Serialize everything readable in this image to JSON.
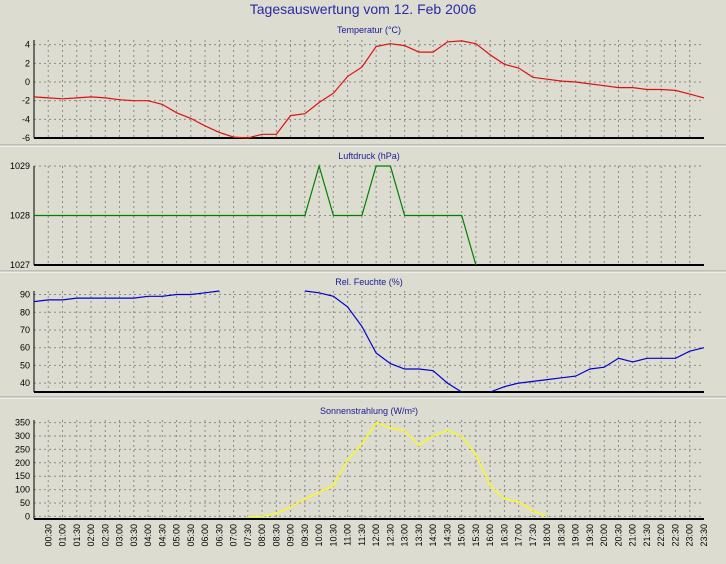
{
  "title": "Tagesauswertung vom 12. Feb 2006",
  "colors": {
    "background": "#dcdcd0",
    "title": "#2a2aa8",
    "grid": "#8c8c8c",
    "temperature": "#e01010",
    "pressure": "#008000",
    "humidity": "#0000d0",
    "radiation": "#ffff00"
  },
  "chart_data": [
    {
      "type": "line",
      "title": "Temperatur (°C)",
      "ylim": [
        -6,
        4.5
      ],
      "yticks": [
        4,
        2,
        0,
        -2,
        -4,
        -6
      ],
      "x": [
        0,
        0.5,
        1,
        1.5,
        2,
        2.5,
        3,
        3.5,
        4,
        4.5,
        5,
        5.5,
        6,
        6.5,
        7,
        7.5,
        8,
        8.5,
        9,
        9.5,
        10,
        10.5,
        11,
        11.5,
        12,
        12.5,
        13,
        13.5,
        14,
        14.5,
        15,
        15.5,
        16,
        16.5,
        17,
        17.5,
        18,
        18.5,
        19,
        19.5,
        20,
        20.5,
        21,
        21.5,
        22,
        22.5,
        23,
        23.5
      ],
      "series": [
        {
          "values": [
            -1.6,
            -1.7,
            -1.8,
            -1.7,
            -1.6,
            -1.7,
            -1.9,
            -2.0,
            -2.0,
            -2.4,
            -3.3,
            -3.9,
            -4.7,
            -5.4,
            -5.9,
            -6.1,
            -5.6,
            -5.6,
            -3.6,
            -3.4,
            -2.2,
            -1.2,
            0.6,
            1.6,
            3.8,
            4.1,
            3.9,
            3.2,
            3.2,
            4.3,
            4.4,
            4.1,
            2.9,
            1.9,
            1.5,
            0.5,
            0.3,
            0.1,
            0.0,
            -0.2,
            -0.4,
            -0.6,
            -0.6,
            -0.8,
            -0.8,
            -0.9,
            -1.3,
            -1.7
          ]
        }
      ]
    },
    {
      "type": "line",
      "title": "Luftdruck (hPa)",
      "ylim": [
        1027,
        1029
      ],
      "yticks": [
        1029,
        1028,
        1027
      ],
      "x": [
        0,
        0.5,
        1,
        1.5,
        2,
        2.5,
        3,
        3.5,
        4,
        4.5,
        5,
        5.5,
        6,
        6.5,
        7,
        7.5,
        8,
        8.5,
        9,
        9.5,
        10,
        10.5,
        11,
        11.5,
        12,
        12.5,
        13,
        13.5,
        14,
        14.5,
        15,
        15.5
      ],
      "series": [
        {
          "values": [
            1028,
            1028,
            1028,
            1028,
            1028,
            1028,
            1028,
            1028,
            1028,
            1028,
            1028,
            1028,
            1028,
            1028,
            1028,
            1028,
            1028,
            1028,
            1028,
            1028,
            1029,
            1028,
            1028,
            1028,
            1029,
            1029,
            1028,
            1028,
            1028,
            1028,
            1028,
            1027
          ]
        }
      ]
    },
    {
      "type": "line",
      "title": "Rel. Feuchte (%)",
      "ylim": [
        35,
        92
      ],
      "yticks": [
        90,
        80,
        70,
        60,
        50,
        40
      ],
      "segments": [
        {
          "x": [
            0,
            0.5,
            1,
            1.5,
            2,
            2.5,
            3,
            3.5,
            4,
            4.5,
            5,
            5.5,
            6,
            6.5
          ],
          "values": [
            86,
            87,
            87,
            88,
            88,
            88,
            88,
            88,
            89,
            89,
            90,
            90,
            91,
            92
          ]
        },
        {
          "x": [
            9.5,
            10,
            10.5,
            11,
            11.5,
            12,
            12.5,
            13,
            13.5,
            14,
            14.5,
            15
          ],
          "values": [
            92,
            91,
            89,
            83,
            72,
            57,
            51,
            48,
            48,
            47,
            40,
            35
          ]
        },
        {
          "x": [
            16,
            16.5,
            17,
            17.5,
            18,
            18.5,
            19,
            19.5,
            20,
            20.5,
            21,
            21.5,
            22,
            22.5,
            23,
            23.5
          ],
          "values": [
            35,
            38,
            40,
            41,
            42,
            43,
            44,
            48,
            49,
            54,
            52,
            54,
            54,
            54,
            58,
            60
          ]
        }
      ]
    },
    {
      "type": "line",
      "title": "Sonnenstrahlung (W/m²)",
      "ylim": [
        -10,
        360
      ],
      "yticks": [
        350,
        300,
        250,
        200,
        150,
        100,
        50,
        0
      ],
      "x": [
        7.5,
        8,
        8.5,
        9,
        9.5,
        10,
        10.5,
        11,
        11.5,
        12,
        12.5,
        13,
        13.5,
        14,
        14.5,
        15,
        15.5,
        16,
        16.5,
        17,
        17.5,
        18
      ],
      "series": [
        {
          "values": [
            0,
            0,
            10,
            35,
            65,
            90,
            115,
            210,
            270,
            350,
            330,
            320,
            265,
            300,
            320,
            300,
            230,
            115,
            65,
            55,
            20,
            0
          ]
        }
      ]
    }
  ],
  "x_tick_labels": [
    "00:30",
    "01:00",
    "01:30",
    "02:00",
    "02:30",
    "03:00",
    "03:30",
    "04:00",
    "04:30",
    "05:00",
    "05:30",
    "06:00",
    "06:30",
    "07:00",
    "07:30",
    "08:00",
    "08:30",
    "09:00",
    "09:30",
    "10:00",
    "10:30",
    "11:00",
    "11:30",
    "12:00",
    "12:30",
    "13:00",
    "13:30",
    "14:00",
    "14:30",
    "15:00",
    "15:30",
    "16:00",
    "16:30",
    "17:00",
    "17:30",
    "18:00",
    "18:30",
    "19:00",
    "19:30",
    "20:00",
    "20:30",
    "21:00",
    "21:30",
    "22:00",
    "22:30",
    "23:00",
    "23:30"
  ]
}
